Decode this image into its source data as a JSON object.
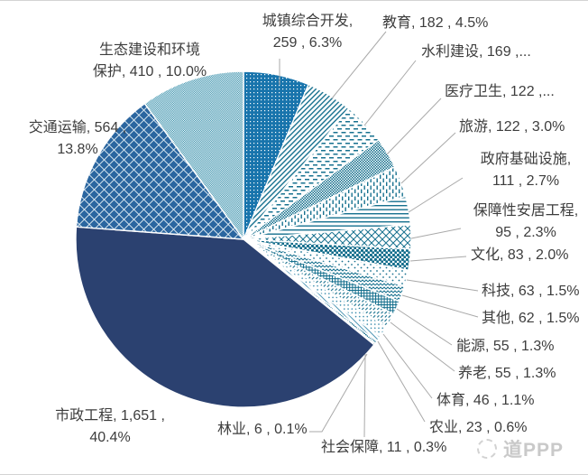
{
  "chart_data": {
    "type": "pie",
    "start_angle": "12-oclock",
    "direction": "clockwise",
    "slices": [
      {
        "id": "urban-development",
        "name": "城镇综合开发",
        "value": 259,
        "pct": "6.3%",
        "label": "城镇综合开发,\n259 , 6.3%",
        "pattern": "white-dots-on-blue"
      },
      {
        "id": "education",
        "name": "教育",
        "value": 182,
        "pct": "4.5%",
        "label": "教育, 182 , 4.5%",
        "pattern": "diagonal-stripes"
      },
      {
        "id": "water-conservancy",
        "name": "水利建设",
        "value": 169,
        "pct": "4.1%",
        "label": "水利建设, 169 ,...",
        "pattern": "horizontal-dashes"
      },
      {
        "id": "healthcare",
        "name": "医疗卫生",
        "value": 122,
        "pct": "3.0%",
        "label": "医疗卫生, 122 ,...",
        "pattern": "dense-checker"
      },
      {
        "id": "tourism",
        "name": "旅游",
        "value": 122,
        "pct": "3.0%",
        "label": "旅游, 122 , 3.0%",
        "pattern": "vertical-dashes"
      },
      {
        "id": "gov-infrastructure",
        "name": "政府基础设施",
        "value": 111,
        "pct": "2.7%",
        "label": "政府基础设施,\n111 , 2.7%",
        "pattern": "horizontal-lines"
      },
      {
        "id": "affordable-housing",
        "name": "保障性安居工程",
        "value": 95,
        "pct": "2.3%",
        "label": "保障性安居工程,\n95 , 2.3%",
        "pattern": "diagonal-lattice"
      },
      {
        "id": "culture",
        "name": "文化",
        "value": 83,
        "pct": "2.0%",
        "label": "文化, 83 , 2.0%",
        "pattern": "large-dots"
      },
      {
        "id": "technology",
        "name": "科技",
        "value": 63,
        "pct": "1.5%",
        "label": "科技, 63 , 1.5%",
        "pattern": "sparse-dots"
      },
      {
        "id": "other",
        "name": "其他",
        "value": 62,
        "pct": "1.5%",
        "label": "其他, 62 , 1.5%",
        "pattern": "zigzag"
      },
      {
        "id": "energy",
        "name": "能源",
        "value": 55,
        "pct": "1.3%",
        "label": "能源, 55 , 1.3%",
        "pattern": "small-grid"
      },
      {
        "id": "elderly-care",
        "name": "养老",
        "value": 55,
        "pct": "1.3%",
        "label": "养老, 55 , 1.3%",
        "pattern": "diagonal-dashes"
      },
      {
        "id": "sports",
        "name": "体育",
        "value": 46,
        "pct": "1.1%",
        "label": "体育, 46 , 1.1%",
        "pattern": "diagonal-dots"
      },
      {
        "id": "agriculture",
        "name": "农业",
        "value": 23,
        "pct": "0.6%",
        "label": "农业, 23 , 0.6%",
        "pattern": "light-diagonal-stripes"
      },
      {
        "id": "social-security",
        "name": "社会保障",
        "value": 11,
        "pct": "0.3%",
        "label": "社会保障, 11 , 0.3%",
        "pattern": "dense-checker"
      },
      {
        "id": "forestry",
        "name": "林业",
        "value": 6,
        "pct": "0.1%",
        "label": "林业, 6 , 0.1%",
        "pattern": "sparse-dots"
      },
      {
        "id": "municipal-engineering",
        "name": "市政工程",
        "value": 1651,
        "pct": "40.4%",
        "label": "市政工程, 1,651 ,\n40.4%",
        "pattern": "solid",
        "color": "#2B4170"
      },
      {
        "id": "transportation",
        "name": "交通运输",
        "value": 564,
        "pct": "13.8%",
        "label": "交通运输, 564 ,\n13.8%",
        "pattern": "diamond-checker"
      },
      {
        "id": "eco-environment",
        "name": "生态建设和环境保护",
        "value": 410,
        "pct": "10.0%",
        "label": "生态建设和环境\n保护, 410 , 10.0%",
        "pattern": "fine-checker"
      }
    ]
  },
  "watermark": {
    "text": "道PPP"
  },
  "colors": {
    "navy": "#2B4170",
    "medium_blue": "#1874AC",
    "diamond_blue": "#2B66A0",
    "teal": "#17718F",
    "teal_dark": "#0E6B8A",
    "eco_teal": "#2F8CA8",
    "leader_gray": "#A9A9A9",
    "label_text": "#3D3D3D"
  }
}
